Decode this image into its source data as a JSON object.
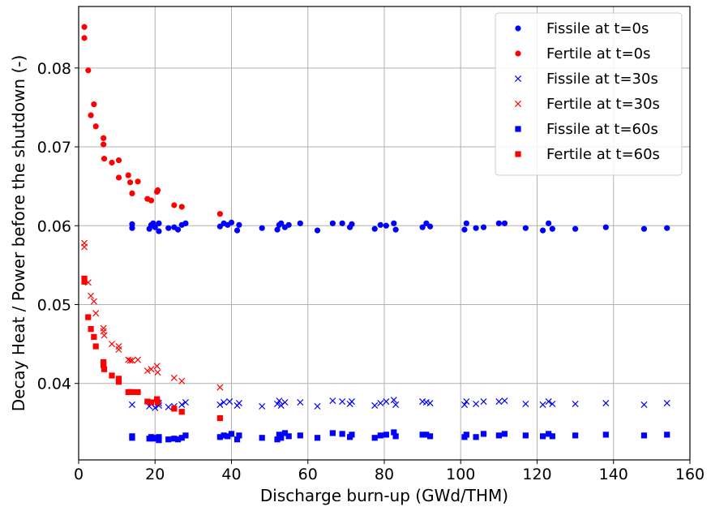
{
  "chart_data": {
    "type": "scatter",
    "xlabel": "Discharge burn-up (GWd/THM)",
    "ylabel": "Decay Heat / Power before the shutdown (-)",
    "xlim": [
      0,
      160
    ],
    "ylim": [
      0.0303,
      0.0878
    ],
    "xticks": [
      0,
      20,
      40,
      60,
      80,
      100,
      120,
      140,
      160
    ],
    "yticks": [
      0.04,
      0.05,
      0.06,
      0.07,
      0.08
    ],
    "xtick_labels": [
      "0",
      "20",
      "40",
      "60",
      "80",
      "100",
      "120",
      "140",
      "160"
    ],
    "ytick_labels": [
      "0.04",
      "0.05",
      "0.06",
      "0.07",
      "0.08"
    ],
    "grid": true,
    "legend_position": "top-right",
    "colors": {
      "fissile": "#0000ff",
      "fertile": "#ff0000"
    },
    "series": [
      {
        "name": "Fissile at t=0s",
        "marker": "circle",
        "color": "#0000ff",
        "x": [
          14,
          14,
          18.5,
          19,
          19.5,
          20,
          21,
          21,
          23.5,
          25,
          26,
          27,
          28,
          37,
          38,
          39,
          40,
          41.5,
          42,
          48,
          52,
          52.5,
          53,
          54,
          55,
          58,
          62.5,
          66.5,
          69,
          71,
          71.5,
          77.5,
          79,
          80.5,
          82.5,
          83,
          90,
          91,
          92,
          101,
          101.5,
          104,
          106,
          110,
          111.5,
          117,
          121.5,
          123,
          124,
          130,
          138,
          148,
          154
        ],
        "y": [
          0.0597,
          0.0602,
          0.0596,
          0.0601,
          0.0603,
          0.0598,
          0.0593,
          0.0603,
          0.0597,
          0.0598,
          0.0595,
          0.0601,
          0.0603,
          0.0599,
          0.0603,
          0.0601,
          0.0604,
          0.0594,
          0.0601,
          0.0597,
          0.0595,
          0.0601,
          0.0603,
          0.0598,
          0.0601,
          0.0603,
          0.0594,
          0.0603,
          0.0603,
          0.0598,
          0.0602,
          0.0596,
          0.0601,
          0.06,
          0.0603,
          0.0595,
          0.0598,
          0.0603,
          0.0599,
          0.0595,
          0.0603,
          0.0597,
          0.0598,
          0.0603,
          0.0603,
          0.0597,
          0.0594,
          0.0603,
          0.0596,
          0.0596,
          0.0598,
          0.0596,
          0.0597
        ]
      },
      {
        "name": "Fertile at t=0s",
        "marker": "circle",
        "color": "#ff0000",
        "x": [
          1.5,
          1.5,
          2.5,
          3.2,
          4,
          4.5,
          6.5,
          6.5,
          6.7,
          8.7,
          10.5,
          10.5,
          13,
          13.5,
          14,
          15.5,
          18,
          19,
          20.5,
          20.7,
          25,
          27,
          37
        ],
        "y": [
          0.0852,
          0.0838,
          0.0797,
          0.074,
          0.0754,
          0.0726,
          0.0711,
          0.0703,
          0.0685,
          0.068,
          0.0683,
          0.0661,
          0.0664,
          0.0655,
          0.0641,
          0.0656,
          0.0634,
          0.0632,
          0.0643,
          0.0645,
          0.0626,
          0.0624,
          0.0615
        ]
      },
      {
        "name": "Fissile at t=30s",
        "marker": "x",
        "color": "#0000ff",
        "x": [
          14,
          18.5,
          19,
          20,
          21,
          21,
          23.5,
          25,
          27,
          28,
          37,
          38,
          39.5,
          41.5,
          42,
          48,
          52,
          52.5,
          53,
          54,
          58,
          62.5,
          66.5,
          69,
          71,
          71.5,
          77.5,
          79,
          80.5,
          82.5,
          83,
          90,
          91,
          92,
          101,
          101.5,
          104,
          106,
          110,
          111.5,
          117,
          121.5,
          123,
          124,
          130,
          138,
          148,
          154
        ],
        "y": [
          0.0373,
          0.0371,
          0.0374,
          0.0369,
          0.0372,
          0.0375,
          0.037,
          0.0371,
          0.0373,
          0.0376,
          0.0373,
          0.0376,
          0.0377,
          0.0372,
          0.0375,
          0.0371,
          0.0374,
          0.0378,
          0.0372,
          0.0376,
          0.0376,
          0.0371,
          0.0378,
          0.0377,
          0.0374,
          0.0377,
          0.0372,
          0.0375,
          0.0377,
          0.0379,
          0.0373,
          0.0377,
          0.0376,
          0.0375,
          0.0373,
          0.0377,
          0.0374,
          0.0377,
          0.0377,
          0.0378,
          0.0374,
          0.0373,
          0.0377,
          0.0374,
          0.0374,
          0.0375,
          0.0373,
          0.0375
        ]
      },
      {
        "name": "Fertile at t=30s",
        "marker": "x",
        "color": "#ff0000",
        "x": [
          1.5,
          1.5,
          2.5,
          3.2,
          4,
          4.5,
          6.5,
          6.5,
          6.7,
          8.7,
          10.5,
          10.5,
          13,
          13.5,
          14,
          15.5,
          18,
          19,
          20.5,
          20.7,
          25,
          27,
          37
        ],
        "y": [
          0.0578,
          0.0573,
          0.0528,
          0.0511,
          0.0504,
          0.0489,
          0.047,
          0.0466,
          0.0461,
          0.045,
          0.0447,
          0.0443,
          0.043,
          0.0429,
          0.0429,
          0.043,
          0.0416,
          0.0418,
          0.0422,
          0.0414,
          0.0407,
          0.0403,
          0.0395
        ]
      },
      {
        "name": "Fissile at t=60s",
        "marker": "square",
        "color": "#0000ff",
        "x": [
          14,
          14,
          18.5,
          19,
          19.5,
          20,
          21,
          21,
          23.5,
          25,
          26,
          27,
          28,
          37,
          38,
          39,
          40,
          41.5,
          42,
          48,
          52,
          52.5,
          53,
          54,
          55,
          58,
          62.5,
          66.5,
          69,
          71,
          71.5,
          77.5,
          79,
          80.5,
          82.5,
          83,
          90,
          91,
          92,
          101,
          101.5,
          104,
          106,
          110,
          111.5,
          117,
          121.5,
          123,
          124,
          130,
          138,
          148,
          154
        ],
        "y": [
          0.0331,
          0.0333,
          0.033,
          0.0332,
          0.033,
          0.0331,
          0.0328,
          0.0332,
          0.0329,
          0.033,
          0.0329,
          0.0331,
          0.0334,
          0.0332,
          0.0334,
          0.0333,
          0.0336,
          0.0329,
          0.0334,
          0.0331,
          0.0329,
          0.0335,
          0.0331,
          0.0337,
          0.0333,
          0.0334,
          0.0331,
          0.0337,
          0.0336,
          0.0332,
          0.0335,
          0.0331,
          0.0334,
          0.0335,
          0.0338,
          0.0333,
          0.0335,
          0.0335,
          0.0333,
          0.0332,
          0.0335,
          0.0332,
          0.0336,
          0.0334,
          0.0336,
          0.0334,
          0.0333,
          0.0336,
          0.0333,
          0.0334,
          0.0335,
          0.0334,
          0.0335
        ]
      },
      {
        "name": "Fertile at t=60s",
        "marker": "square",
        "color": "#ff0000",
        "x": [
          1.5,
          1.5,
          2.5,
          3.2,
          4,
          4.5,
          6.5,
          6.5,
          6.7,
          8.7,
          10.5,
          10.5,
          13,
          13.5,
          14,
          15.5,
          18,
          19,
          20.5,
          20.7,
          25,
          27,
          37
        ],
        "y": [
          0.0533,
          0.0529,
          0.0484,
          0.0469,
          0.0459,
          0.0447,
          0.0427,
          0.0423,
          0.0418,
          0.041,
          0.0406,
          0.0402,
          0.0389,
          0.0389,
          0.0389,
          0.0389,
          0.0377,
          0.0376,
          0.038,
          0.0376,
          0.0368,
          0.0364,
          0.0356
        ]
      }
    ]
  }
}
